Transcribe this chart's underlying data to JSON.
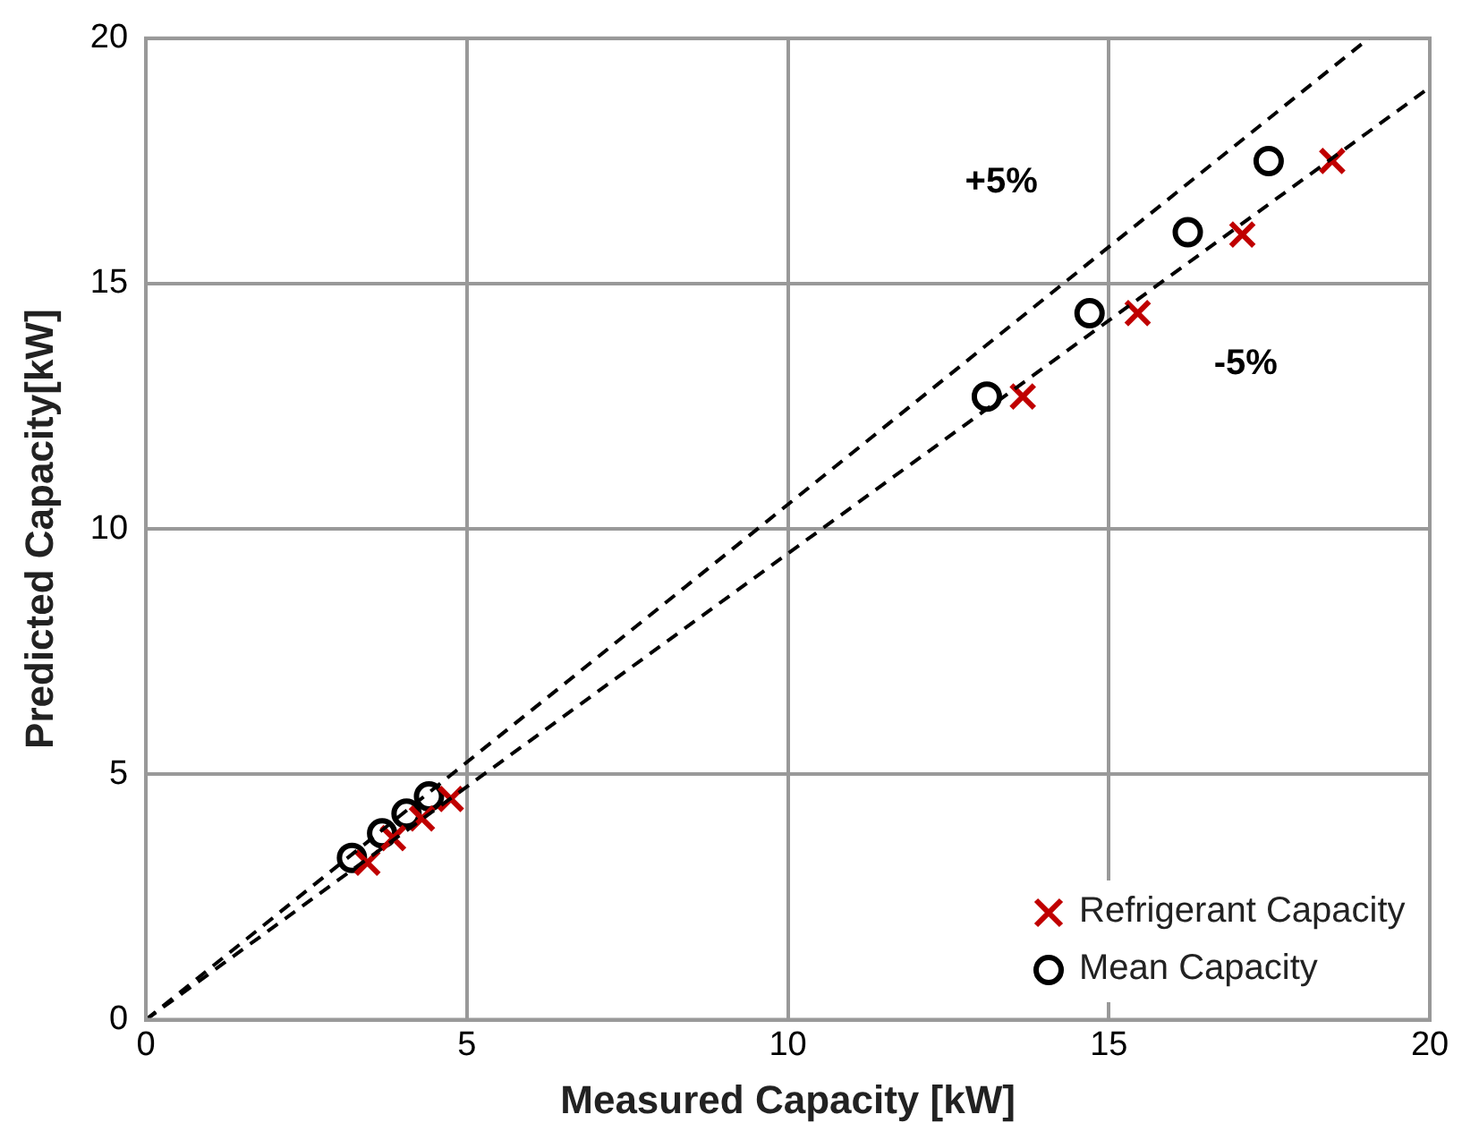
{
  "chart_data": {
    "type": "scatter",
    "xlabel": "Measured Capacity [kW]",
    "ylabel": "Predicted Capacity[kW]",
    "xlim": [
      0,
      20
    ],
    "xticks": [
      0,
      5,
      10,
      15,
      20
    ],
    "ylim": [
      0,
      20
    ],
    "yticks": [
      0,
      5,
      10,
      15,
      20
    ],
    "grid": true,
    "legend": "bottom right",
    "series": [
      {
        "type": "line",
        "x": [
          0,
          19.05
        ],
        "values": [
          0,
          20
        ],
        "color": "#000000",
        "line_style": "dashed",
        "marker": "none"
      },
      {
        "type": "line",
        "x": [
          0,
          20
        ],
        "values": [
          0,
          19
        ],
        "color": "#000000",
        "line_style": "dashed",
        "marker": "none"
      },
      {
        "name": "Refrigerant Capacity",
        "color": "#c00000",
        "marker": "cross",
        "x": [
          3.45,
          3.85,
          4.3,
          4.75,
          13.66,
          15.45,
          17.08,
          18.48
        ],
        "values": [
          3.2,
          3.7,
          4.1,
          4.5,
          12.7,
          14.4,
          16.0,
          17.5
        ]
      },
      {
        "name": "Mean Capacity",
        "color": "#000000",
        "marker": "circle",
        "x": [
          3.21,
          3.68,
          4.06,
          4.41,
          13.1,
          14.7,
          16.23,
          17.49
        ],
        "values": [
          3.3,
          3.8,
          4.2,
          4.55,
          12.7,
          14.4,
          16.05,
          17.5
        ]
      }
    ],
    "annotations": [
      "+5%",
      "-5%"
    ]
  }
}
